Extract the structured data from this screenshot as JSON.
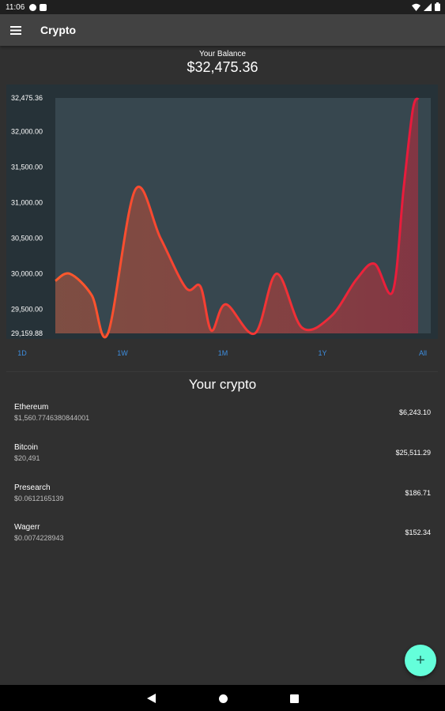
{
  "status_bar": {
    "time": "11:06",
    "left_icons": [
      "app-notification-icon",
      "sd-card-icon"
    ],
    "right_icons": [
      "wifi-icon",
      "signal-icon",
      "battery-icon"
    ]
  },
  "app_bar": {
    "title": "Crypto",
    "menu_icon": "hamburger-menu-icon"
  },
  "balance": {
    "label": "Your Balance",
    "value": "$32,475.36"
  },
  "chart_data": {
    "type": "area",
    "title": "",
    "xlabel": "",
    "ylabel": "",
    "ylim": [
      29159.88,
      32475.36
    ],
    "y_ticks": [
      "32,475.36",
      "32,000.00",
      "31,500.00",
      "31,000.00",
      "30,500.00",
      "30,000.00",
      "29,500.00",
      "29,159.88"
    ],
    "y_tick_values": [
      32475.36,
      32000,
      31500,
      31000,
      30500,
      30000,
      29500,
      29159.88
    ],
    "x": [
      0,
      0.04,
      0.1,
      0.145,
      0.22,
      0.29,
      0.36,
      0.4,
      0.43,
      0.47,
      0.55,
      0.61,
      0.68,
      0.76,
      0.83,
      0.88,
      0.93,
      0.96,
      0.985,
      1.0
    ],
    "values": [
      29900,
      30000,
      29700,
      29160,
      31180,
      30500,
      29800,
      29820,
      29200,
      29570,
      29160,
      30000,
      29240,
      29400,
      29920,
      30140,
      29750,
      31200,
      32300,
      32475
    ],
    "line_colors": [
      "#ff5a2c",
      "#e8193c"
    ],
    "fill_color": "#c0283a",
    "plot_background": "#37474f",
    "card_background": "#263238"
  },
  "ranges": [
    "1D",
    "1W",
    "1M",
    "1Y",
    "All"
  ],
  "section_title": "Your crypto",
  "cryptos": [
    {
      "name": "Ethereum",
      "price": "$1,560.7746380844001",
      "value": "$6,243.10"
    },
    {
      "name": "Bitcoin",
      "price": "$20,491",
      "value": "$25,511.29"
    },
    {
      "name": "Presearch",
      "price": "$0.0612165139",
      "value": "$186.71"
    },
    {
      "name": "Wagerr",
      "price": "$0.0074228943",
      "value": "$152.34"
    }
  ],
  "fab": {
    "label": "+",
    "icon": "add-icon",
    "color": "#64ffda"
  },
  "nav": {
    "icons": [
      "back-icon",
      "home-icon",
      "recents-icon"
    ]
  }
}
